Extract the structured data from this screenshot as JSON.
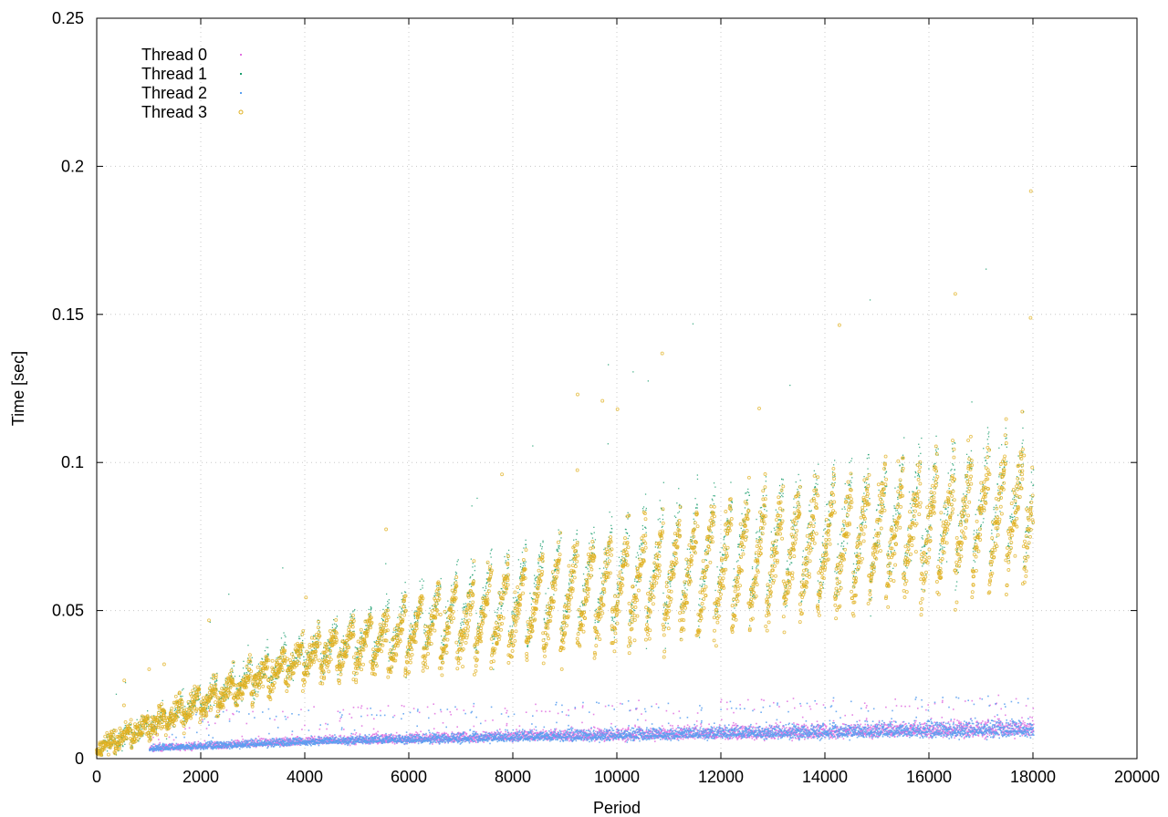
{
  "chart_data": {
    "type": "scatter",
    "xlabel": "Period",
    "ylabel": "Time [sec]",
    "xlim": [
      0,
      20000
    ],
    "ylim": [
      0,
      0.25
    ],
    "xticks": [
      0,
      2000,
      4000,
      6000,
      8000,
      10000,
      12000,
      14000,
      16000,
      18000,
      20000
    ],
    "yticks": [
      0,
      0.05,
      0.1,
      0.15,
      0.2,
      0.25
    ],
    "xtick_labels": [
      "0",
      "2000",
      "4000",
      "6000",
      "8000",
      "10000",
      "12000",
      "14000",
      "16000",
      "18000",
      "20000"
    ],
    "ytick_labels": [
      "0",
      "0.05",
      "0.1",
      "0.15",
      "0.2",
      "0.25"
    ],
    "grid": true,
    "legend_position": "top-left",
    "series": [
      {
        "name": "Thread 0",
        "color": "#e070e0",
        "x_range": [
          1000,
          18000
        ],
        "trend": [
          [
            1000,
            0.0035
          ],
          [
            4000,
            0.006
          ],
          [
            8000,
            0.0075
          ],
          [
            12000,
            0.0085
          ],
          [
            18000,
            0.01
          ]
        ]
      },
      {
        "name": "Thread 1",
        "color": "#1a9e6e",
        "x_range": [
          0,
          18000
        ],
        "sawtooth": {
          "period": 330,
          "start": [
            [
              0,
              0.002
            ],
            [
              4000,
              0.03
            ],
            [
              8000,
              0.04
            ],
            [
              12000,
              0.05
            ],
            [
              18000,
              0.07
            ]
          ],
          "end": [
            [
              0,
              0.005
            ],
            [
              4000,
              0.042
            ],
            [
              8000,
              0.07
            ],
            [
              12000,
              0.09
            ],
            [
              18000,
              0.11
            ]
          ]
        }
      },
      {
        "name": "Thread 2",
        "color": "#5aa0f0",
        "x_range": [
          1000,
          18000
        ],
        "trend": [
          [
            1000,
            0.0035
          ],
          [
            4000,
            0.0058
          ],
          [
            8000,
            0.0073
          ],
          [
            12000,
            0.0085
          ],
          [
            18000,
            0.0098
          ]
        ]
      },
      {
        "name": "Thread 3",
        "color": "#e0b020",
        "x_range": [
          0,
          18000
        ],
        "sawtooth": {
          "period": 330,
          "start": [
            [
              0,
              0.002
            ],
            [
              4000,
              0.028
            ],
            [
              8000,
              0.035
            ],
            [
              12000,
              0.045
            ],
            [
              18000,
              0.065
            ]
          ],
          "end": [
            [
              0,
              0.005
            ],
            [
              4000,
              0.04
            ],
            [
              8000,
              0.065
            ],
            [
              12000,
              0.085
            ],
            [
              18000,
              0.105
            ]
          ]
        }
      }
    ]
  }
}
